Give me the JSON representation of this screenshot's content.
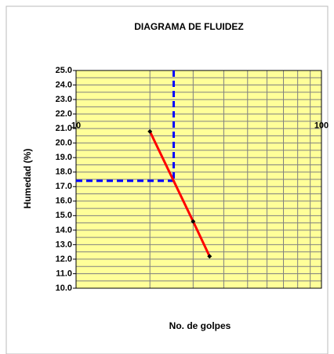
{
  "chart_data": {
    "type": "line",
    "title": "DIAGRAMA  DE  FLUIDEZ",
    "xlabel": "No.  de golpes",
    "ylabel": "Humedad (%)",
    "xscale": "log",
    "xlim": [
      10,
      100
    ],
    "xticks": [
      10,
      100
    ],
    "xminor_ticks": [
      20,
      30,
      40,
      50,
      60,
      70,
      80,
      90
    ],
    "ylim": [
      10,
      25
    ],
    "yticks": [
      {
        "value": 10,
        "label": "10.0"
      },
      {
        "value": 11,
        "label": "11.0"
      },
      {
        "value": 12,
        "label": "12.0"
      },
      {
        "value": 13,
        "label": "13.0"
      },
      {
        "value": 14,
        "label": "14.0"
      },
      {
        "value": 15,
        "label": "15.0"
      },
      {
        "value": 16,
        "label": "16.0"
      },
      {
        "value": 17,
        "label": "17.0"
      },
      {
        "value": 18,
        "label": "18.0"
      },
      {
        "value": 19,
        "label": "19.0"
      },
      {
        "value": 20,
        "label": "20.0"
      },
      {
        "value": 21,
        "label": "21.0"
      },
      {
        "value": 22,
        "label": "22.0"
      },
      {
        "value": 23,
        "label": "23.0"
      },
      {
        "value": 24,
        "label": "24.0"
      },
      {
        "value": 25,
        "label": "25.0"
      }
    ],
    "yminor_ticks": [
      10.5,
      11.5,
      12.5,
      13.5,
      14.5,
      15.5,
      16.5,
      17.5,
      18.5,
      19.5,
      20.5,
      21.5,
      22.5,
      23.5,
      24.5
    ],
    "grid": true,
    "plot_background": "#ffff99",
    "series": [
      {
        "color": "#ff0000",
        "x": [
          20,
          30,
          35
        ],
        "values": [
          20.8,
          14.6,
          12.2
        ]
      }
    ],
    "reference": {
      "x": 25,
      "y": 17.4,
      "color": "#0000ff"
    }
  }
}
